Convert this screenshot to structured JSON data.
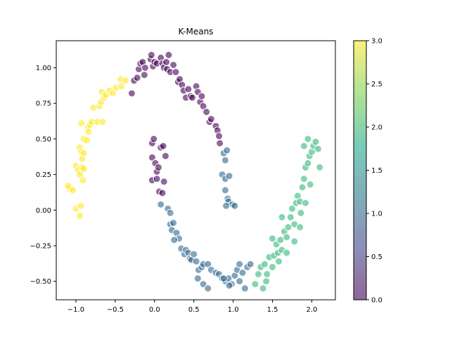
{
  "chart_data": {
    "type": "scatter",
    "title": "K-Means",
    "xlabel": "",
    "ylabel": "",
    "xlim": [
      -1.25,
      2.3
    ],
    "ylim": [
      -0.63,
      1.19
    ],
    "xticks": [
      -1.0,
      -0.5,
      0.0,
      0.5,
      1.0,
      1.5,
      2.0
    ],
    "xtick_labels": [
      "−1.0",
      "−0.5",
      "0.0",
      "0.5",
      "1.0",
      "1.5",
      "2.0"
    ],
    "yticks": [
      -0.5,
      -0.25,
      0.0,
      0.25,
      0.5,
      0.75,
      1.0
    ],
    "ytick_labels": [
      "−0.50",
      "−0.25",
      "0.00",
      "0.25",
      "0.50",
      "0.75",
      "1.00"
    ],
    "grid": false,
    "legend": "none",
    "marker_alpha": 0.6,
    "marker_edge_color": "#ffffff",
    "colormap": "viridis",
    "colorbar": {
      "range": [
        0.0,
        3.0
      ],
      "ticks": [
        0.0,
        0.5,
        1.0,
        1.5,
        2.0,
        2.5,
        3.0
      ],
      "tick_labels": [
        "0.0",
        "0.5",
        "1.0",
        "1.5",
        "2.0",
        "2.5",
        "3.0"
      ],
      "stops": [
        "#440154",
        "#414487",
        "#2a788e",
        "#22a884",
        "#7ad151",
        "#fde725"
      ]
    },
    "cluster_colors": {
      "0": "#440154",
      "1": "#31688e",
      "2": "#35b779",
      "3": "#fde725"
    },
    "points": [
      [
        -1.08,
        0.15,
        3
      ],
      [
        -1.1,
        0.17,
        3
      ],
      [
        -1.04,
        0.14,
        3
      ],
      [
        -1.0,
        0.01,
        3
      ],
      [
        -0.94,
        0.03,
        3
      ],
      [
        -0.95,
        -0.04,
        3
      ],
      [
        -1.0,
        0.31,
        3
      ],
      [
        -0.97,
        0.28,
        3
      ],
      [
        -0.95,
        0.25,
        3
      ],
      [
        -0.92,
        0.3,
        3
      ],
      [
        -0.9,
        0.29,
        3
      ],
      [
        -0.91,
        0.21,
        3
      ],
      [
        -0.95,
        0.44,
        3
      ],
      [
        -0.93,
        0.41,
        3
      ],
      [
        -0.92,
        0.36,
        3
      ],
      [
        -0.9,
        0.4,
        3
      ],
      [
        -0.93,
        0.61,
        3
      ],
      [
        -0.9,
        0.5,
        3
      ],
      [
        -0.86,
        0.49,
        3
      ],
      [
        -0.85,
        0.58,
        3
      ],
      [
        -0.82,
        0.6,
        3
      ],
      [
        -0.8,
        0.62,
        3
      ],
      [
        -0.84,
        0.55,
        3
      ],
      [
        -0.78,
        0.72,
        3
      ],
      [
        -0.73,
        0.62,
        3
      ],
      [
        -0.7,
        0.73,
        3
      ],
      [
        -0.66,
        0.62,
        3
      ],
      [
        -0.68,
        0.76,
        3
      ],
      [
        -0.64,
        0.79,
        3
      ],
      [
        -0.67,
        0.83,
        3
      ],
      [
        -0.62,
        0.81,
        3
      ],
      [
        -0.57,
        0.84,
        3
      ],
      [
        -0.53,
        0.82,
        3
      ],
      [
        -0.49,
        0.86,
        3
      ],
      [
        -0.43,
        0.92,
        3
      ],
      [
        -0.42,
        0.87,
        3
      ],
      [
        -0.37,
        0.91,
        3
      ],
      [
        -0.29,
        0.82,
        0
      ],
      [
        -0.26,
        0.91,
        0
      ],
      [
        -0.22,
        0.93,
        0
      ],
      [
        -0.2,
        0.99,
        0
      ],
      [
        -0.18,
        1.03,
        0
      ],
      [
        -0.15,
        1.04,
        0
      ],
      [
        -0.13,
        0.95,
        0
      ],
      [
        -0.12,
        1.0,
        0
      ],
      [
        -0.05,
        1.06,
        0
      ],
      [
        -0.04,
        1.09,
        0
      ],
      [
        -0.02,
        1.01,
        0
      ],
      [
        0.0,
        1.04,
        0
      ],
      [
        0.03,
        1.03,
        0
      ],
      [
        0.08,
        1.07,
        0
      ],
      [
        0.1,
        1.03,
        0
      ],
      [
        0.12,
        1.0,
        0
      ],
      [
        0.15,
        1.04,
        0
      ],
      [
        0.18,
        1.09,
        0
      ],
      [
        0.16,
        0.99,
        0
      ],
      [
        0.2,
        0.97,
        0
      ],
      [
        0.24,
        1.02,
        0
      ],
      [
        0.27,
        0.97,
        0
      ],
      [
        0.3,
        0.9,
        0
      ],
      [
        0.32,
        0.92,
        0
      ],
      [
        0.35,
        0.88,
        0
      ],
      [
        0.37,
        0.84,
        0
      ],
      [
        0.4,
        0.79,
        0
      ],
      [
        0.43,
        0.85,
        0
      ],
      [
        0.46,
        0.8,
        0
      ],
      [
        0.48,
        0.79,
        0
      ],
      [
        0.53,
        0.87,
        0
      ],
      [
        0.55,
        0.83,
        0
      ],
      [
        0.58,
        0.76,
        0
      ],
      [
        0.6,
        0.8,
        0
      ],
      [
        0.62,
        0.73,
        0
      ],
      [
        0.66,
        0.69,
        0
      ],
      [
        0.7,
        0.62,
        0
      ],
      [
        0.72,
        0.64,
        0
      ],
      [
        0.78,
        0.59,
        0
      ],
      [
        0.8,
        0.56,
        0
      ],
      [
        0.82,
        0.52,
        0
      ],
      [
        0.83,
        0.47,
        0
      ],
      [
        -0.03,
        0.47,
        0
      ],
      [
        -0.01,
        0.5,
        0
      ],
      [
        -0.03,
        0.37,
        0
      ],
      [
        0.01,
        0.33,
        0
      ],
      [
        0.03,
        0.27,
        0
      ],
      [
        0.05,
        0.3,
        0
      ],
      [
        -0.03,
        0.21,
        0
      ],
      [
        0.03,
        0.22,
        0
      ],
      [
        0.06,
        0.13,
        0
      ],
      [
        0.1,
        0.12,
        0
      ],
      [
        0.12,
        0.2,
        0
      ],
      [
        0.08,
        0.44,
        0
      ],
      [
        0.11,
        0.45,
        0
      ],
      [
        0.14,
        0.38,
        0
      ],
      [
        0.88,
        0.4,
        1
      ],
      [
        0.9,
        0.35,
        1
      ],
      [
        0.92,
        0.42,
        1
      ],
      [
        0.86,
        0.25,
        1
      ],
      [
        0.9,
        0.22,
        1
      ],
      [
        0.95,
        0.24,
        1
      ],
      [
        0.9,
        0.14,
        1
      ],
      [
        0.93,
        0.08,
        1
      ],
      [
        0.94,
        0.06,
        1
      ],
      [
        0.99,
        0.04,
        1
      ],
      [
        1.02,
        0.03,
        1
      ],
      [
        0.91,
        0.03,
        1
      ],
      [
        0.08,
        0.04,
        1
      ],
      [
        0.17,
        0.01,
        1
      ],
      [
        0.2,
        -0.02,
        1
      ],
      [
        0.2,
        -0.1,
        1
      ],
      [
        0.24,
        -0.09,
        1
      ],
      [
        0.22,
        -0.14,
        1
      ],
      [
        0.28,
        -0.16,
        1
      ],
      [
        0.31,
        -0.2,
        1
      ],
      [
        0.25,
        -0.21,
        1
      ],
      [
        0.34,
        -0.27,
        1
      ],
      [
        0.38,
        -0.31,
        1
      ],
      [
        0.4,
        -0.28,
        1
      ],
      [
        0.43,
        -0.3,
        1
      ],
      [
        0.45,
        -0.34,
        1
      ],
      [
        0.47,
        -0.35,
        1
      ],
      [
        0.5,
        -0.31,
        1
      ],
      [
        0.53,
        -0.36,
        1
      ],
      [
        0.56,
        -0.42,
        1
      ],
      [
        0.6,
        -0.4,
        1
      ],
      [
        0.62,
        -0.38,
        1
      ],
      [
        0.68,
        -0.38,
        1
      ],
      [
        0.72,
        -0.42,
        1
      ],
      [
        0.78,
        -0.44,
        1
      ],
      [
        0.82,
        -0.45,
        1
      ],
      [
        0.86,
        -0.48,
        1
      ],
      [
        0.9,
        -0.5,
        1
      ],
      [
        0.94,
        -0.48,
        1
      ],
      [
        0.98,
        -0.52,
        1
      ],
      [
        1.02,
        -0.46,
        1
      ],
      [
        1.05,
        -0.42,
        1
      ],
      [
        1.08,
        -0.38,
        1
      ],
      [
        1.12,
        -0.44,
        1
      ],
      [
        1.18,
        -0.4,
        1
      ],
      [
        1.22,
        -0.38,
        1
      ],
      [
        0.88,
        -0.48,
        1
      ],
      [
        0.95,
        -0.53,
        1
      ],
      [
        0.55,
        -0.48,
        1
      ],
      [
        0.62,
        -0.52,
        1
      ],
      [
        0.68,
        -0.55,
        1
      ],
      [
        1.08,
        -0.5,
        1
      ],
      [
        1.15,
        -0.55,
        1
      ],
      [
        1.28,
        -0.52,
        2
      ],
      [
        1.32,
        -0.45,
        2
      ],
      [
        1.35,
        -0.4,
        2
      ],
      [
        1.38,
        -0.55,
        2
      ],
      [
        1.4,
        -0.38,
        2
      ],
      [
        1.43,
        -0.45,
        2
      ],
      [
        1.46,
        -0.33,
        2
      ],
      [
        1.5,
        -0.4,
        2
      ],
      [
        1.52,
        -0.32,
        2
      ],
      [
        1.55,
        -0.24,
        2
      ],
      [
        1.57,
        -0.3,
        2
      ],
      [
        1.6,
        -0.21,
        2
      ],
      [
        1.62,
        -0.28,
        2
      ],
      [
        1.65,
        -0.15,
        2
      ],
      [
        1.68,
        -0.19,
        2
      ],
      [
        1.7,
        -0.12,
        2
      ],
      [
        1.73,
        -0.05,
        2
      ],
      [
        1.75,
        0.01,
        2
      ],
      [
        1.78,
        -0.1,
        2
      ],
      [
        1.8,
        0.05,
        2
      ],
      [
        1.82,
        0.1,
        2
      ],
      [
        1.85,
        0.06,
        2
      ],
      [
        1.86,
        -0.02,
        2
      ],
      [
        1.88,
        0.16,
        2
      ],
      [
        1.9,
        0.22,
        2
      ],
      [
        1.92,
        0.3,
        2
      ],
      [
        1.95,
        0.33,
        2
      ],
      [
        1.97,
        0.38,
        2
      ],
      [
        2.0,
        0.41,
        2
      ],
      [
        2.02,
        0.45,
        2
      ],
      [
        2.05,
        0.48,
        2
      ],
      [
        2.08,
        0.43,
        2
      ],
      [
        2.1,
        0.3,
        2
      ],
      [
        1.95,
        0.5,
        2
      ],
      [
        1.9,
        0.45,
        2
      ],
      [
        1.98,
        0.18,
        2
      ],
      [
        1.92,
        0.05,
        2
      ],
      [
        1.85,
        -0.12,
        2
      ],
      [
        1.78,
        -0.22,
        2
      ],
      [
        1.68,
        -0.3,
        2
      ],
      [
        1.58,
        -0.36,
        2
      ],
      [
        1.42,
        -0.5,
        2
      ],
      [
        1.5,
        -0.2,
        2
      ],
      [
        1.62,
        -0.05,
        2
      ]
    ]
  }
}
